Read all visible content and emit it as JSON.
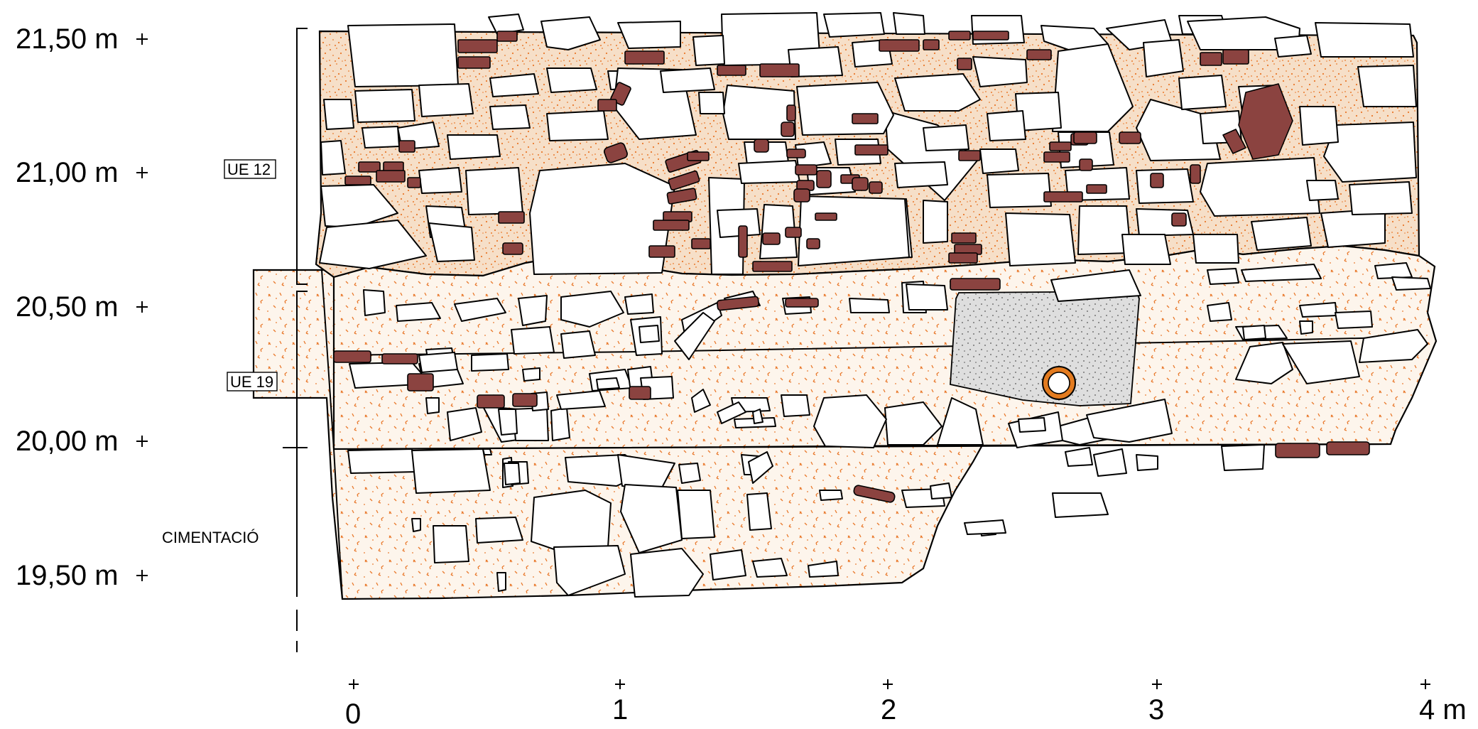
{
  "elevations": [
    {
      "id": "e2150",
      "label": "21,50 m",
      "value": 21.5
    },
    {
      "id": "e2100",
      "label": "21,00 m",
      "value": 21.0
    },
    {
      "id": "e2050",
      "label": "20,50 m",
      "value": 20.5
    },
    {
      "id": "e2000",
      "label": "20,00 m",
      "value": 20.0
    },
    {
      "id": "e1950",
      "label": "19,50 m",
      "value": 19.5
    }
  ],
  "units": [
    {
      "id": "ue12",
      "label": "UE 12"
    },
    {
      "id": "ue19",
      "label": "UE 19"
    },
    {
      "id": "cimentacio",
      "label": "CIMENTACIÓ"
    }
  ],
  "scale": [
    {
      "id": "s0",
      "label": "0"
    },
    {
      "id": "s1",
      "label": "1"
    },
    {
      "id": "s2",
      "label": "2"
    },
    {
      "id": "s3",
      "label": "3"
    },
    {
      "id": "s4",
      "label": "4 m"
    }
  ],
  "colors": {
    "upper_matrix": "#f6dfc8",
    "lower_matrix": "#fdf5ec",
    "speckle": "#e9792c",
    "brick": "#8b4340",
    "pit_fill": "#dedede",
    "pipe": "#e37b1f"
  }
}
